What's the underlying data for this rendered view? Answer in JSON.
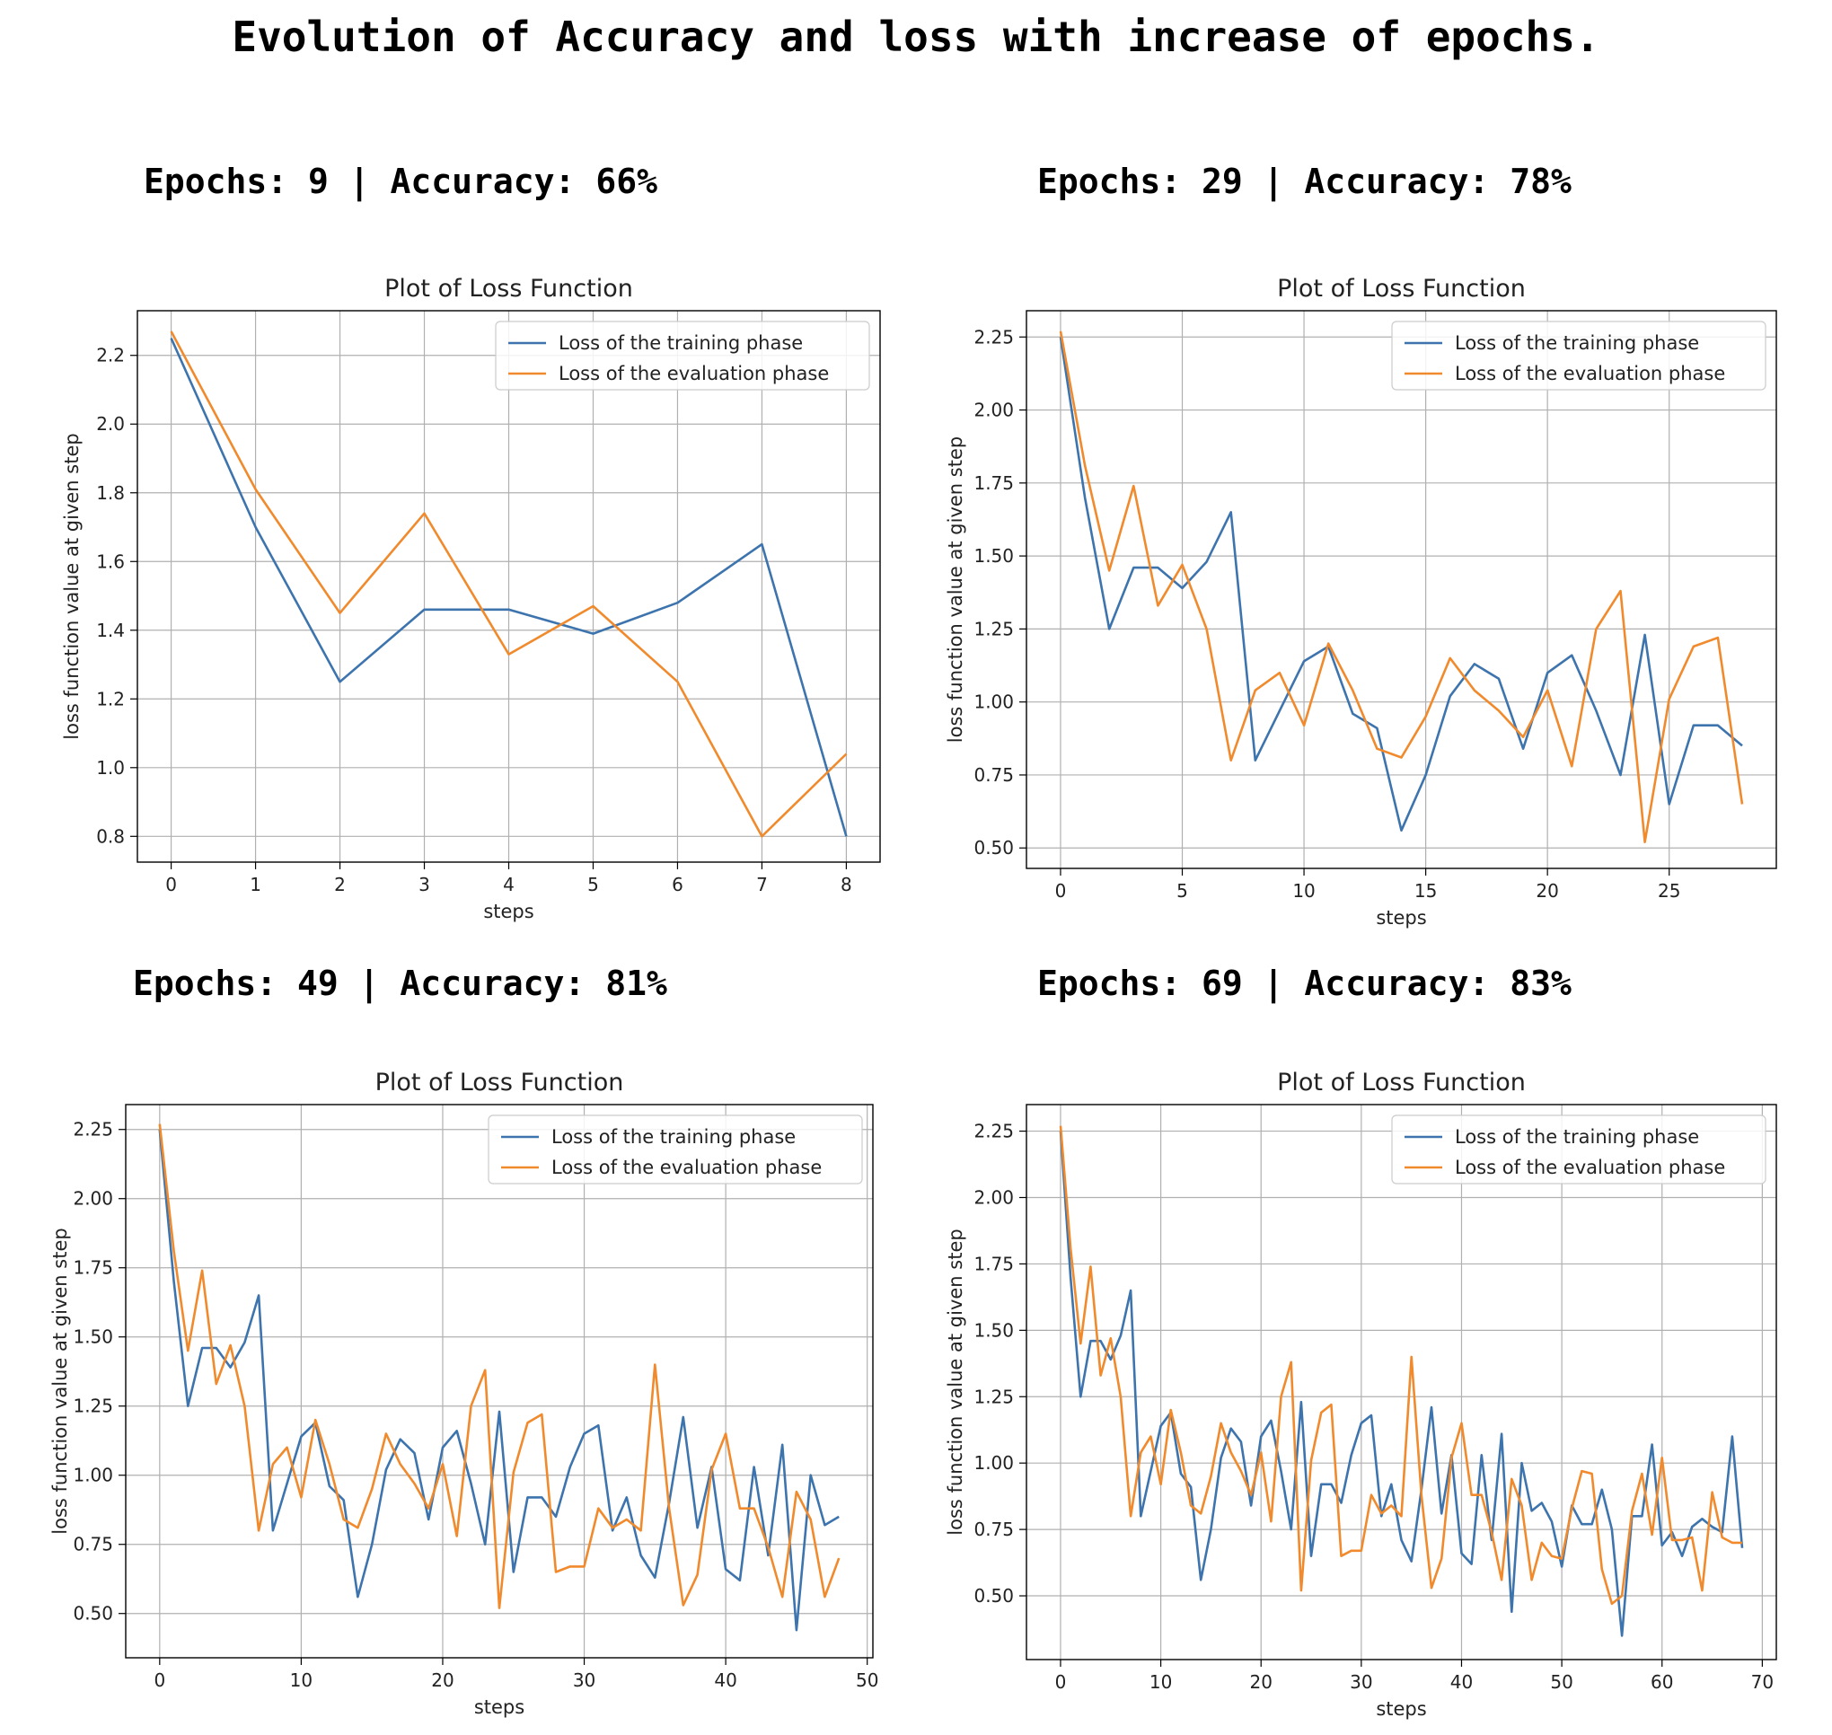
{
  "figure_title": "Evolution of Accuracy and loss with increase of epochs.",
  "colors": {
    "training": "#3d74ad",
    "evaluation": "#f08a2c"
  },
  "chart_data": [
    {
      "type": "line",
      "heading": "Epochs: 9 | Accuracy: 66%",
      "title": "Plot of Loss Function",
      "xlabel": "steps",
      "ylabel": "loss function value at given step",
      "xlim": [
        -0.4,
        8.4
      ],
      "ylim": [
        0.725,
        2.33
      ],
      "xticks": [
        0,
        1,
        2,
        3,
        4,
        5,
        6,
        7,
        8
      ],
      "xtick_labels": [
        "0",
        "1",
        "2",
        "3",
        "4",
        "5",
        "6",
        "7",
        "8"
      ],
      "yticks": [
        0.8,
        1.0,
        1.2,
        1.4,
        1.6,
        1.8,
        2.0,
        2.2
      ],
      "ytick_labels": [
        "0.8",
        "1.0",
        "1.2",
        "1.4",
        "1.6",
        "1.8",
        "2.0",
        "2.2"
      ],
      "grid": true,
      "legend": "top-right",
      "series": [
        {
          "name": "Loss of the training phase",
          "x": [
            0,
            1,
            2,
            3,
            4,
            5,
            6,
            7,
            8
          ],
          "values": [
            2.25,
            1.7,
            1.25,
            1.46,
            1.46,
            1.39,
            1.48,
            1.65,
            0.8
          ]
        },
        {
          "name": "Loss of the evaluation phase",
          "x": [
            0,
            1,
            2,
            3,
            4,
            5,
            6,
            7,
            8
          ],
          "values": [
            2.27,
            1.81,
            1.45,
            1.74,
            1.33,
            1.47,
            1.25,
            0.8,
            1.04
          ]
        }
      ]
    },
    {
      "type": "line",
      "heading": "Epochs: 29 | Accuracy: 78%",
      "title": "Plot of Loss Function",
      "xlabel": "steps",
      "ylabel": "loss function value at given step",
      "xlim": [
        -1.4,
        29.4
      ],
      "ylim": [
        0.43,
        2.34
      ],
      "xticks": [
        0,
        5,
        10,
        15,
        20,
        25
      ],
      "xtick_labels": [
        "0",
        "5",
        "10",
        "15",
        "20",
        "25"
      ],
      "yticks": [
        0.5,
        0.75,
        1.0,
        1.25,
        1.5,
        1.75,
        2.0,
        2.25
      ],
      "ytick_labels": [
        "0.50",
        "0.75",
        "1.00",
        "1.25",
        "1.50",
        "1.75",
        "2.00",
        "2.25"
      ],
      "grid": true,
      "legend": "top-right",
      "series": [
        {
          "name": "Loss of the training phase",
          "x": [
            0,
            1,
            2,
            3,
            4,
            5,
            6,
            7,
            8,
            9,
            10,
            11,
            12,
            13,
            14,
            15,
            16,
            17,
            18,
            19,
            20,
            21,
            22,
            23,
            24,
            25,
            26,
            27,
            28
          ],
          "values": [
            2.25,
            1.7,
            1.25,
            1.46,
            1.46,
            1.39,
            1.48,
            1.65,
            0.8,
            0.97,
            1.14,
            1.19,
            0.96,
            0.91,
            0.56,
            0.75,
            1.02,
            1.13,
            1.08,
            0.84,
            1.1,
            1.16,
            0.97,
            0.75,
            1.23,
            0.65,
            0.92,
            0.92,
            0.85
          ]
        },
        {
          "name": "Loss of the evaluation phase",
          "x": [
            0,
            1,
            2,
            3,
            4,
            5,
            6,
            7,
            8,
            9,
            10,
            11,
            12,
            13,
            14,
            15,
            16,
            17,
            18,
            19,
            20,
            21,
            22,
            23,
            24,
            25,
            26,
            27,
            28
          ],
          "values": [
            2.27,
            1.81,
            1.45,
            1.74,
            1.33,
            1.47,
            1.25,
            0.8,
            1.04,
            1.1,
            0.92,
            1.2,
            1.04,
            0.84,
            0.81,
            0.95,
            1.15,
            1.04,
            0.97,
            0.88,
            1.04,
            0.78,
            1.25,
            1.38,
            0.52,
            1.01,
            1.19,
            1.22,
            0.65
          ]
        }
      ]
    },
    {
      "type": "line",
      "heading": "Epochs: 49 | Accuracy: 81%",
      "title": "Plot of Loss Function",
      "xlabel": "steps",
      "ylabel": "loss function value at given step",
      "xlim": [
        -2.4,
        50.4
      ],
      "ylim": [
        0.34,
        2.34
      ],
      "xticks": [
        0,
        10,
        20,
        30,
        40,
        50
      ],
      "xtick_labels": [
        "0",
        "10",
        "20",
        "30",
        "40",
        "50"
      ],
      "yticks": [
        0.5,
        0.75,
        1.0,
        1.25,
        1.5,
        1.75,
        2.0,
        2.25
      ],
      "ytick_labels": [
        "0.50",
        "0.75",
        "1.00",
        "1.25",
        "1.50",
        "1.75",
        "2.00",
        "2.25"
      ],
      "grid": true,
      "legend": "top-right",
      "series": [
        {
          "name": "Loss of the training phase",
          "x": [
            0,
            1,
            2,
            3,
            4,
            5,
            6,
            7,
            8,
            9,
            10,
            11,
            12,
            13,
            14,
            15,
            16,
            17,
            18,
            19,
            20,
            21,
            22,
            23,
            24,
            25,
            26,
            27,
            28,
            29,
            30,
            31,
            32,
            33,
            34,
            35,
            36,
            37,
            38,
            39,
            40,
            41,
            42,
            43,
            44,
            45,
            46,
            47,
            48
          ],
          "values": [
            2.25,
            1.7,
            1.25,
            1.46,
            1.46,
            1.39,
            1.48,
            1.65,
            0.8,
            0.97,
            1.14,
            1.19,
            0.96,
            0.91,
            0.56,
            0.75,
            1.02,
            1.13,
            1.08,
            0.84,
            1.1,
            1.16,
            0.97,
            0.75,
            1.23,
            0.65,
            0.92,
            0.92,
            0.85,
            1.03,
            1.15,
            1.18,
            0.8,
            0.92,
            0.71,
            0.63,
            0.9,
            1.21,
            0.81,
            1.03,
            0.66,
            0.62,
            1.03,
            0.71,
            1.11,
            0.44,
            1.0,
            0.82,
            0.85
          ]
        },
        {
          "name": "Loss of the evaluation phase",
          "x": [
            0,
            1,
            2,
            3,
            4,
            5,
            6,
            7,
            8,
            9,
            10,
            11,
            12,
            13,
            14,
            15,
            16,
            17,
            18,
            19,
            20,
            21,
            22,
            23,
            24,
            25,
            26,
            27,
            28,
            29,
            30,
            31,
            32,
            33,
            34,
            35,
            36,
            37,
            38,
            39,
            40,
            41,
            42,
            43,
            44,
            45,
            46,
            47,
            48
          ],
          "values": [
            2.27,
            1.81,
            1.45,
            1.74,
            1.33,
            1.47,
            1.25,
            0.8,
            1.04,
            1.1,
            0.92,
            1.2,
            1.04,
            0.84,
            0.81,
            0.95,
            1.15,
            1.04,
            0.97,
            0.88,
            1.04,
            0.78,
            1.25,
            1.38,
            0.52,
            1.01,
            1.19,
            1.22,
            0.65,
            0.67,
            0.67,
            0.88,
            0.81,
            0.84,
            0.8,
            1.4,
            0.88,
            0.53,
            0.64,
            1.02,
            1.15,
            0.88,
            0.88,
            0.74,
            0.56,
            0.94,
            0.84,
            0.56,
            0.7
          ]
        }
      ]
    },
    {
      "type": "line",
      "heading": "Epochs: 69 | Accuracy: 83%",
      "title": "Plot of Loss Function",
      "xlabel": "steps",
      "ylabel": "loss function value at given step",
      "xlim": [
        -3.4,
        71.4
      ],
      "ylim": [
        0.26,
        2.35
      ],
      "xticks": [
        0,
        10,
        20,
        30,
        40,
        50,
        60,
        70
      ],
      "xtick_labels": [
        "0",
        "10",
        "20",
        "30",
        "40",
        "50",
        "60",
        "70"
      ],
      "yticks": [
        0.5,
        0.75,
        1.0,
        1.25,
        1.5,
        1.75,
        2.0,
        2.25
      ],
      "ytick_labels": [
        "0.50",
        "0.75",
        "1.00",
        "1.25",
        "1.50",
        "1.75",
        "2.00",
        "2.25"
      ],
      "grid": true,
      "legend": "top-right",
      "series": [
        {
          "name": "Loss of the training phase",
          "x": [
            0,
            1,
            2,
            3,
            4,
            5,
            6,
            7,
            8,
            9,
            10,
            11,
            12,
            13,
            14,
            15,
            16,
            17,
            18,
            19,
            20,
            21,
            22,
            23,
            24,
            25,
            26,
            27,
            28,
            29,
            30,
            31,
            32,
            33,
            34,
            35,
            36,
            37,
            38,
            39,
            40,
            41,
            42,
            43,
            44,
            45,
            46,
            47,
            48,
            49,
            50,
            51,
            52,
            53,
            54,
            55,
            56,
            57,
            58,
            59,
            60,
            61,
            62,
            63,
            64,
            65,
            66,
            67,
            68
          ],
          "values": [
            2.25,
            1.7,
            1.25,
            1.46,
            1.46,
            1.39,
            1.48,
            1.65,
            0.8,
            0.97,
            1.14,
            1.19,
            0.96,
            0.91,
            0.56,
            0.75,
            1.02,
            1.13,
            1.08,
            0.84,
            1.1,
            1.16,
            0.97,
            0.75,
            1.23,
            0.65,
            0.92,
            0.92,
            0.85,
            1.03,
            1.15,
            1.18,
            0.8,
            0.92,
            0.71,
            0.63,
            0.9,
            1.21,
            0.81,
            1.03,
            0.66,
            0.62,
            1.03,
            0.71,
            1.11,
            0.44,
            1.0,
            0.82,
            0.85,
            0.78,
            0.61,
            0.84,
            0.77,
            0.77,
            0.9,
            0.75,
            0.35,
            0.8,
            0.8,
            1.07,
            0.69,
            0.74,
            0.65,
            0.76,
            0.79,
            0.76,
            0.74,
            1.1,
            0.68
          ]
        },
        {
          "name": "Loss of the evaluation phase",
          "x": [
            0,
            1,
            2,
            3,
            4,
            5,
            6,
            7,
            8,
            9,
            10,
            11,
            12,
            13,
            14,
            15,
            16,
            17,
            18,
            19,
            20,
            21,
            22,
            23,
            24,
            25,
            26,
            27,
            28,
            29,
            30,
            31,
            32,
            33,
            34,
            35,
            36,
            37,
            38,
            39,
            40,
            41,
            42,
            43,
            44,
            45,
            46,
            47,
            48,
            49,
            50,
            51,
            52,
            53,
            54,
            55,
            56,
            57,
            58,
            59,
            60,
            61,
            62,
            63,
            64,
            65,
            66,
            67,
            68
          ],
          "values": [
            2.27,
            1.81,
            1.45,
            1.74,
            1.33,
            1.47,
            1.25,
            0.8,
            1.04,
            1.1,
            0.92,
            1.2,
            1.04,
            0.84,
            0.81,
            0.95,
            1.15,
            1.04,
            0.97,
            0.88,
            1.04,
            0.78,
            1.25,
            1.38,
            0.52,
            1.01,
            1.19,
            1.22,
            0.65,
            0.67,
            0.67,
            0.88,
            0.81,
            0.84,
            0.8,
            1.4,
            0.88,
            0.53,
            0.64,
            1.02,
            1.15,
            0.88,
            0.88,
            0.74,
            0.56,
            0.94,
            0.84,
            0.56,
            0.7,
            0.65,
            0.64,
            0.83,
            0.97,
            0.96,
            0.6,
            0.47,
            0.5,
            0.82,
            0.96,
            0.73,
            1.02,
            0.71,
            0.71,
            0.72,
            0.52,
            0.89,
            0.72,
            0.7,
            0.7
          ]
        }
      ]
    }
  ]
}
